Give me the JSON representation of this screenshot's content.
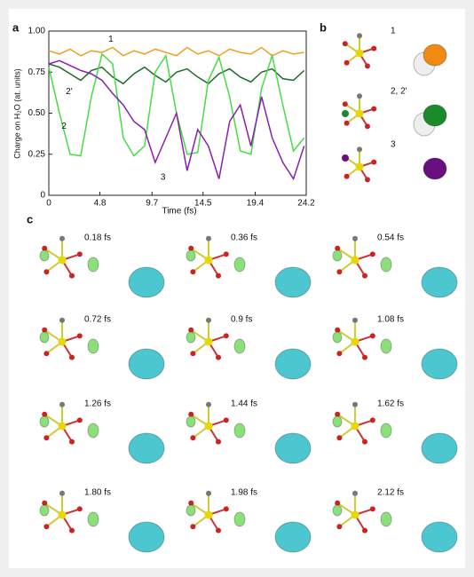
{
  "panel_labels": [
    "a",
    "b",
    "c"
  ],
  "chart_data": {
    "type": "line",
    "xlabel": "Time (fs)",
    "ylabel": "Charge on H₂O (at. units)",
    "x": [
      0,
      1,
      2,
      3,
      4,
      5,
      6,
      7,
      8,
      9,
      10,
      11,
      12,
      13,
      14,
      15,
      16,
      17,
      18,
      19,
      20,
      21,
      22,
      23,
      24
    ],
    "series": [
      {
        "name": "1",
        "color": "#f0a020",
        "values": [
          0.88,
          0.86,
          0.89,
          0.85,
          0.88,
          0.87,
          0.9,
          0.85,
          0.88,
          0.86,
          0.89,
          0.87,
          0.85,
          0.9,
          0.86,
          0.88,
          0.85,
          0.89,
          0.87,
          0.86,
          0.9,
          0.85,
          0.88,
          0.86,
          0.87
        ]
      },
      {
        "name": "2'",
        "color": "#1f6a2a",
        "values": [
          0.8,
          0.78,
          0.74,
          0.7,
          0.76,
          0.78,
          0.72,
          0.68,
          0.74,
          0.78,
          0.73,
          0.69,
          0.75,
          0.77,
          0.72,
          0.68,
          0.74,
          0.77,
          0.72,
          0.69,
          0.75,
          0.77,
          0.71,
          0.7,
          0.76
        ]
      },
      {
        "name": "2",
        "color": "#44dd44",
        "values": [
          0.78,
          0.5,
          0.25,
          0.24,
          0.6,
          0.86,
          0.8,
          0.35,
          0.24,
          0.3,
          0.75,
          0.85,
          0.5,
          0.25,
          0.26,
          0.7,
          0.84,
          0.6,
          0.27,
          0.25,
          0.65,
          0.85,
          0.55,
          0.27,
          0.35
        ]
      },
      {
        "name": "3",
        "color": "#8a1fb0",
        "values": [
          0.8,
          0.82,
          0.79,
          0.76,
          0.74,
          0.7,
          0.62,
          0.55,
          0.45,
          0.4,
          0.2,
          0.35,
          0.5,
          0.15,
          0.4,
          0.3,
          0.1,
          0.45,
          0.55,
          0.3,
          0.6,
          0.35,
          0.2,
          0.1,
          0.3
        ]
      }
    ],
    "xlim": [
      0,
      24.2
    ],
    "xticks": [
      0,
      4.8,
      9.7,
      14.5,
      19.4,
      24.2
    ],
    "ylim": [
      0,
      1
    ],
    "yticks": [
      0,
      0.25,
      {
        "value": 0.5,
        "label": "0.50"
      },
      0.75,
      {
        "value": 1,
        "label": "1.00"
      }
    ]
  },
  "panel_b": {
    "labels": [
      "1",
      "2, 2'",
      "3"
    ]
  },
  "panel_c": {
    "frames": [
      "0.18 fs",
      "0.36 fs",
      "0.54 fs",
      "0.72 fs",
      "0.9 fs",
      "1.08 fs",
      "1.26 fs",
      "1.44 fs",
      "1.62 fs",
      "1.80 fs",
      "1.98 fs",
      "2.12 fs"
    ]
  }
}
